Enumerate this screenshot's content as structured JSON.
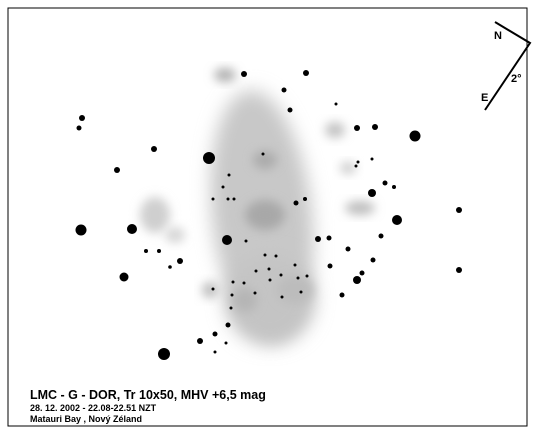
{
  "compass": {
    "north": "N",
    "east": "E",
    "field": "2°"
  },
  "caption": {
    "title": "LMC - G - DOR, Tr 10x50,  MHV +6,5 mag",
    "date": "28. 12. 2002 - 22.08-22.51 NZT",
    "place": "Matauri Bay , Nový Zéland"
  }
}
